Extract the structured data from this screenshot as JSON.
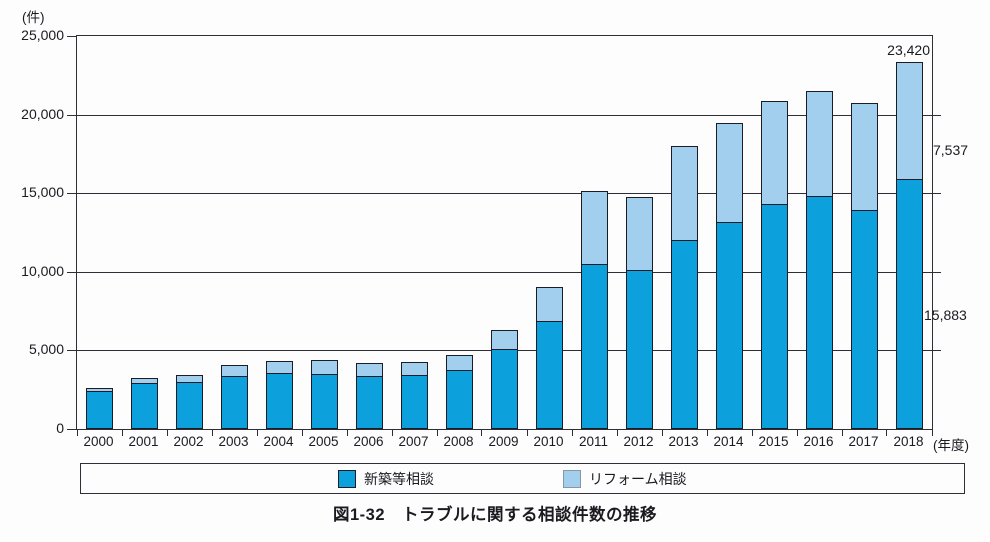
{
  "caption": "図1-32　トラブルに関する相談件数の推移",
  "y_axis": {
    "unit_label": "(件)",
    "tick_labels": [
      "25,000",
      "20,000",
      "15,000",
      "10,000",
      "5,000",
      "0"
    ]
  },
  "x_axis": {
    "unit_label": "(年度)"
  },
  "colors": {
    "new": "#0CA0DC",
    "reform": "#A3CFEF"
  },
  "legend": [
    {
      "label": "新築等相談",
      "color_key": "new"
    },
    {
      "label": "リフォーム相談",
      "color_key": "reform"
    }
  ],
  "annotations": {
    "total_2018": {
      "text": "23,420",
      "meaning": "2018 total consultations"
    },
    "reform_2018": {
      "text": "7,537",
      "meaning": "2018 リフォーム相談"
    },
    "new_2018": {
      "text": "15,883",
      "meaning": "2018 新築等相談"
    }
  },
  "chart_data": {
    "type": "bar",
    "stacked": true,
    "title": "図1-32 トラブルに関する相談件数の推移",
    "xlabel": "年度",
    "ylabel": "件",
    "ylim": [
      0,
      25000
    ],
    "ytick_interval": 5000,
    "grid": true,
    "legend_position": "bottom",
    "categories": [
      "2000",
      "2001",
      "2002",
      "2003",
      "2004",
      "2005",
      "2006",
      "2007",
      "2008",
      "2009",
      "2010",
      "2011",
      "2012",
      "2013",
      "2014",
      "2015",
      "2016",
      "2017",
      "2018"
    ],
    "series": [
      {
        "name": "新築等相談",
        "color_key": "new",
        "values": [
          2450,
          2900,
          3000,
          3400,
          3550,
          3500,
          3400,
          3450,
          3750,
          5100,
          6850,
          10500,
          10100,
          12050,
          13200,
          14300,
          14800,
          13950,
          15883
        ]
      },
      {
        "name": "リフォーム相談",
        "color_key": "reform",
        "values": [
          250,
          400,
          500,
          750,
          850,
          950,
          850,
          900,
          1050,
          1250,
          2250,
          4700,
          4700,
          6000,
          6350,
          6600,
          6750,
          6850,
          7537
        ]
      }
    ],
    "totals_note": "2018 total = 23,420 (新築等 15,883 + リフォーム 7,537)"
  }
}
